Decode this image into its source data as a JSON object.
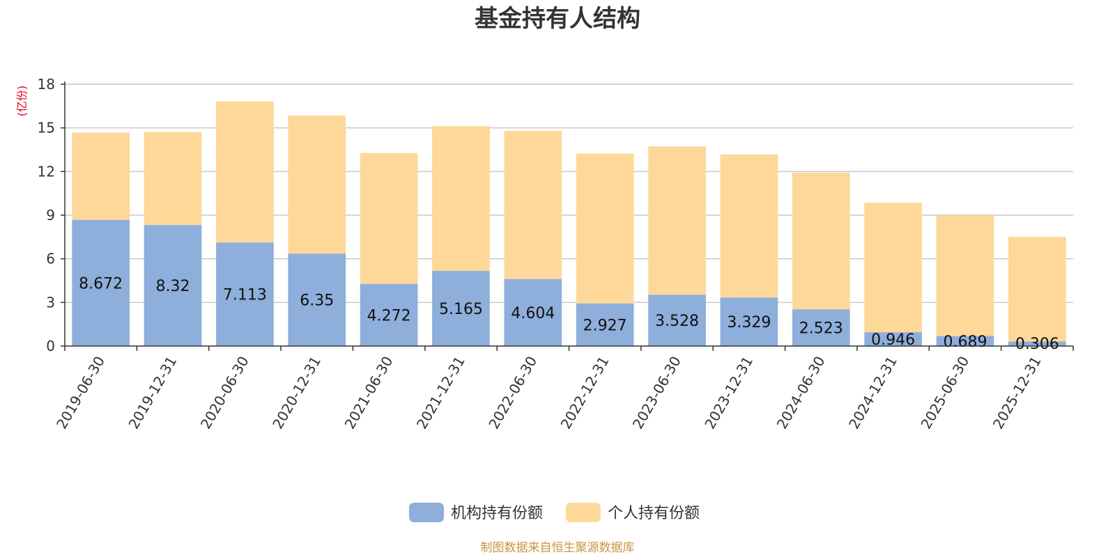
{
  "chart_data": {
    "type": "bar",
    "stacked": true,
    "title": "基金持有人结构",
    "unit": "(亿份)",
    "categories": [
      "2019-06-30",
      "2019-12-31",
      "2020-06-30",
      "2020-12-31",
      "2021-06-30",
      "2021-12-31",
      "2022-06-30",
      "2022-12-31",
      "2023-06-30",
      "2023-12-31",
      "2024-06-30",
      "2024-12-31",
      "2025-06-30",
      "2025-12-31"
    ],
    "series": [
      {
        "name": "机构持有份额",
        "color": "#8eaedb",
        "values": [
          8.672,
          8.32,
          7.113,
          6.35,
          4.272,
          5.165,
          4.604,
          2.927,
          3.528,
          3.329,
          2.523,
          0.946,
          0.689,
          0.306
        ],
        "labels": [
          "8.672",
          "8.32",
          "7.113",
          "6.35",
          "4.272",
          "5.165",
          "4.604",
          "2.927",
          "3.528",
          "3.329",
          "2.523",
          "0.946",
          "0.689",
          "0.306"
        ]
      },
      {
        "name": "个人持有份额",
        "color": "#fdd899",
        "values": [
          6.0,
          6.4,
          9.7,
          9.5,
          9.0,
          9.95,
          10.2,
          10.3,
          10.2,
          9.85,
          9.4,
          8.9,
          8.3,
          7.2
        ]
      }
    ],
    "ylim": [
      0,
      18
    ],
    "yticks": [
      0,
      3,
      6,
      9,
      12,
      15,
      18
    ],
    "grid": true,
    "legend_position": "bottom-center"
  },
  "footer": {
    "source": "制图数据来自恒生聚源数据库"
  }
}
